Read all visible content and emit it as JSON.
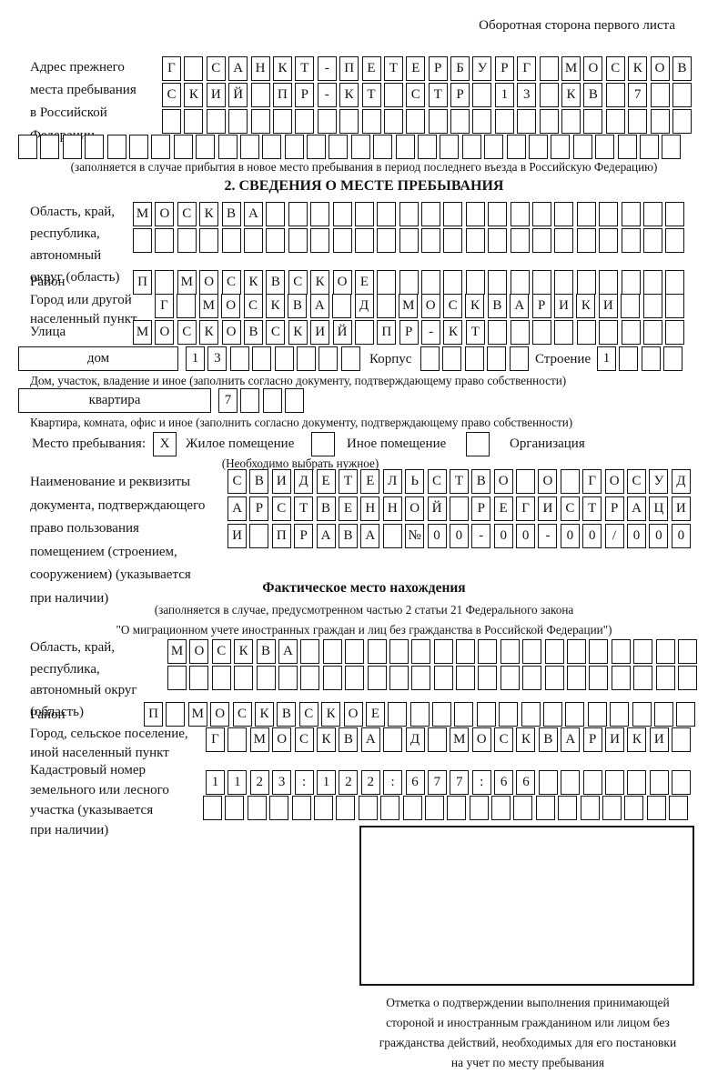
{
  "page": {
    "corner_note": "Оборотная сторона первого листа"
  },
  "prev": {
    "label_lines": [
      "Адрес прежнего",
      "места пребывания",
      "в Российской",
      "Федерации"
    ],
    "row1": {
      "chars": "Г_САНКТ-ПЕТЕРБУРГ_МОСКОВ",
      "len": 24
    },
    "row2": {
      "chars": "СКИЙ_ПР-КТ_СТР_13_КВ_7",
      "len": 24
    },
    "row3": {
      "chars": "",
      "len": 24
    },
    "row4": {
      "chars": "",
      "len": 30
    },
    "note": "(заполняется в случае прибытия в новое место пребывания в период последнего въезда в Российскую Федерацию)"
  },
  "s2": {
    "title": "2. СВЕДЕНИЯ О МЕСТЕ ПРЕБЫВАНИЯ",
    "oblast_label_lines": [
      "Область, край,",
      "республика,",
      "автономный",
      "округ (область)"
    ],
    "oblast_row1": {
      "chars": "МОСКВА",
      "len": 25
    },
    "oblast_row2": {
      "chars": "",
      "len": 25
    },
    "raion_label": "Район",
    "raion_row": {
      "chars": "П_МОСКВСКОЕ",
      "len": 25
    },
    "gorod_label_lines": [
      "Город или другой",
      "населенный пункт"
    ],
    "gorod_row": {
      "chars": "Г_МОСКВА_Д_МОСКВАРИКИ",
      "len": 24
    },
    "ulitsa_label": "Улица",
    "ulitsa_row": {
      "chars": "МОСКОВСКИЙ_ПР-КТ",
      "len": 25
    },
    "dom_box_label": "дом",
    "dom_row": {
      "chars": "13",
      "len": 8
    },
    "korpus_label": "Корпус",
    "korpus_row": {
      "chars": "",
      "len": 5
    },
    "stroenie_label": "Строение",
    "stroenie_row": {
      "chars": "1",
      "len": 4
    },
    "dom_caption": "Дом, участок, владение и иное (заполнить согласно документу, подтверждающему право собственности)",
    "kvartira_box_label": "квартира",
    "kvartira_row": {
      "chars": "7",
      "len": 4
    },
    "kvartira_caption": "Квартира, комната, офис и иное (заполнить согласно документу, подтверждающему право собственности)",
    "mesto": {
      "label": "Место пребывания:",
      "options": [
        {
          "mark": "X",
          "label": "Жилое помещение"
        },
        {
          "mark": "",
          "label": "Иное помещение"
        },
        {
          "mark": "",
          "label": "Организация"
        }
      ],
      "note": "(Необходимо выбрать нужное)"
    },
    "doc_label_lines": [
      "Наименование и реквизиты",
      "документа, подтверждающего",
      "право пользования",
      "помещением (строением,",
      "сооружением) (указывается",
      "при наличии)"
    ],
    "doc_row1": {
      "chars": "СВИДЕТЕЛЬСТВО_О_ГОСУД",
      "len": 21
    },
    "doc_row2": {
      "chars": "АРСТВЕННОЙ_РЕГИСТРАЦИ",
      "len": 21
    },
    "doc_row3": {
      "chars": "И_ПРАВА_№00-00-00/000",
      "len": 21
    }
  },
  "fact": {
    "title": "Фактическое место нахождения",
    "note1": "(заполняется в случае, предусмотренном частью 2 статьи 21 Федерального закона",
    "note2": "\"О миграционном учете иностранных граждан и лиц без гражданства в Российской Федерации\")",
    "oblast_label_lines": [
      "Область, край,",
      "республика,",
      "автономный округ",
      "(область)"
    ],
    "oblast_row1": {
      "chars": "МОСКВА",
      "len": 24
    },
    "oblast_row2": {
      "chars": "",
      "len": 24
    },
    "raion_label": "Район",
    "raion_row": {
      "chars": "П_МОСКВСКОЕ",
      "len": 25
    },
    "gorod_label_lines": [
      "Город, сельское поселение,",
      "иной населенный пункт"
    ],
    "gorod_row": {
      "chars": "Г_МОСКВА_Д_МОСКВАРИКИ",
      "len": 22
    },
    "kadastr_label_lines": [
      "Кадастровый номер",
      "земельного или лесного",
      "участка (указывается",
      "при наличии)"
    ],
    "kadastr_row1": {
      "chars": "1123:122:677:66",
      "len": 22
    },
    "kadastr_row2": {
      "chars": "",
      "len": 22
    },
    "stamp_caption_lines": [
      "Отметка о подтверждении выполнения принимающей",
      "стороной и иностранным гражданином или лицом без",
      "гражданства действий, необходимых для его постановки",
      "на учет по месту пребывания"
    ]
  }
}
